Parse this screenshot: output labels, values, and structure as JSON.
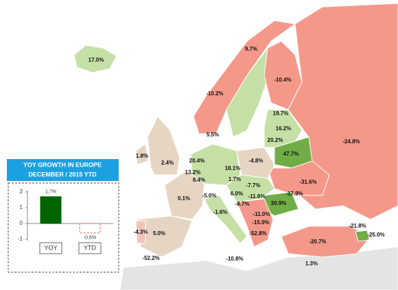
{
  "map_labels": [
    "17.0%",
    "9.7%",
    "-10.2%",
    "-10.4%",
    "19.7%",
    "16.2%",
    "5.5%",
    "20.2%",
    "47.7%",
    "-24.8%",
    "1.8%",
    "2.4%",
    "20.4%",
    "18.1%",
    "-4.8%",
    "13.2%",
    "8.4%",
    "1.7%",
    "-7.7%",
    "-31.6%",
    "0.1%",
    "-5.0%",
    "6.0%",
    "-11.6%",
    "-17.9%",
    "-8.7%",
    "30.9%",
    "-1.6%",
    "-11.0%",
    "-15.0%",
    "-21.8%",
    "-25.0%",
    "-4.3%",
    "5.0%",
    "-52.8%",
    "-20.7%",
    "-52.2%",
    "-10.8%",
    "1.3%"
  ],
  "chart_data": {
    "type": "bar",
    "title": "YOY GROWTH IN EUROPE",
    "subtitle": "DECEMBER / 2015 YTD",
    "categories": [
      "YOY",
      "YTD"
    ],
    "values": [
      1.7,
      -0.6
    ],
    "value_labels": [
      "1,7%",
      "-0,6%"
    ],
    "colors": [
      "#006400",
      "#e06060"
    ],
    "ylim": [
      -1,
      2
    ],
    "yticks": [
      -1,
      0,
      1,
      2
    ]
  }
}
